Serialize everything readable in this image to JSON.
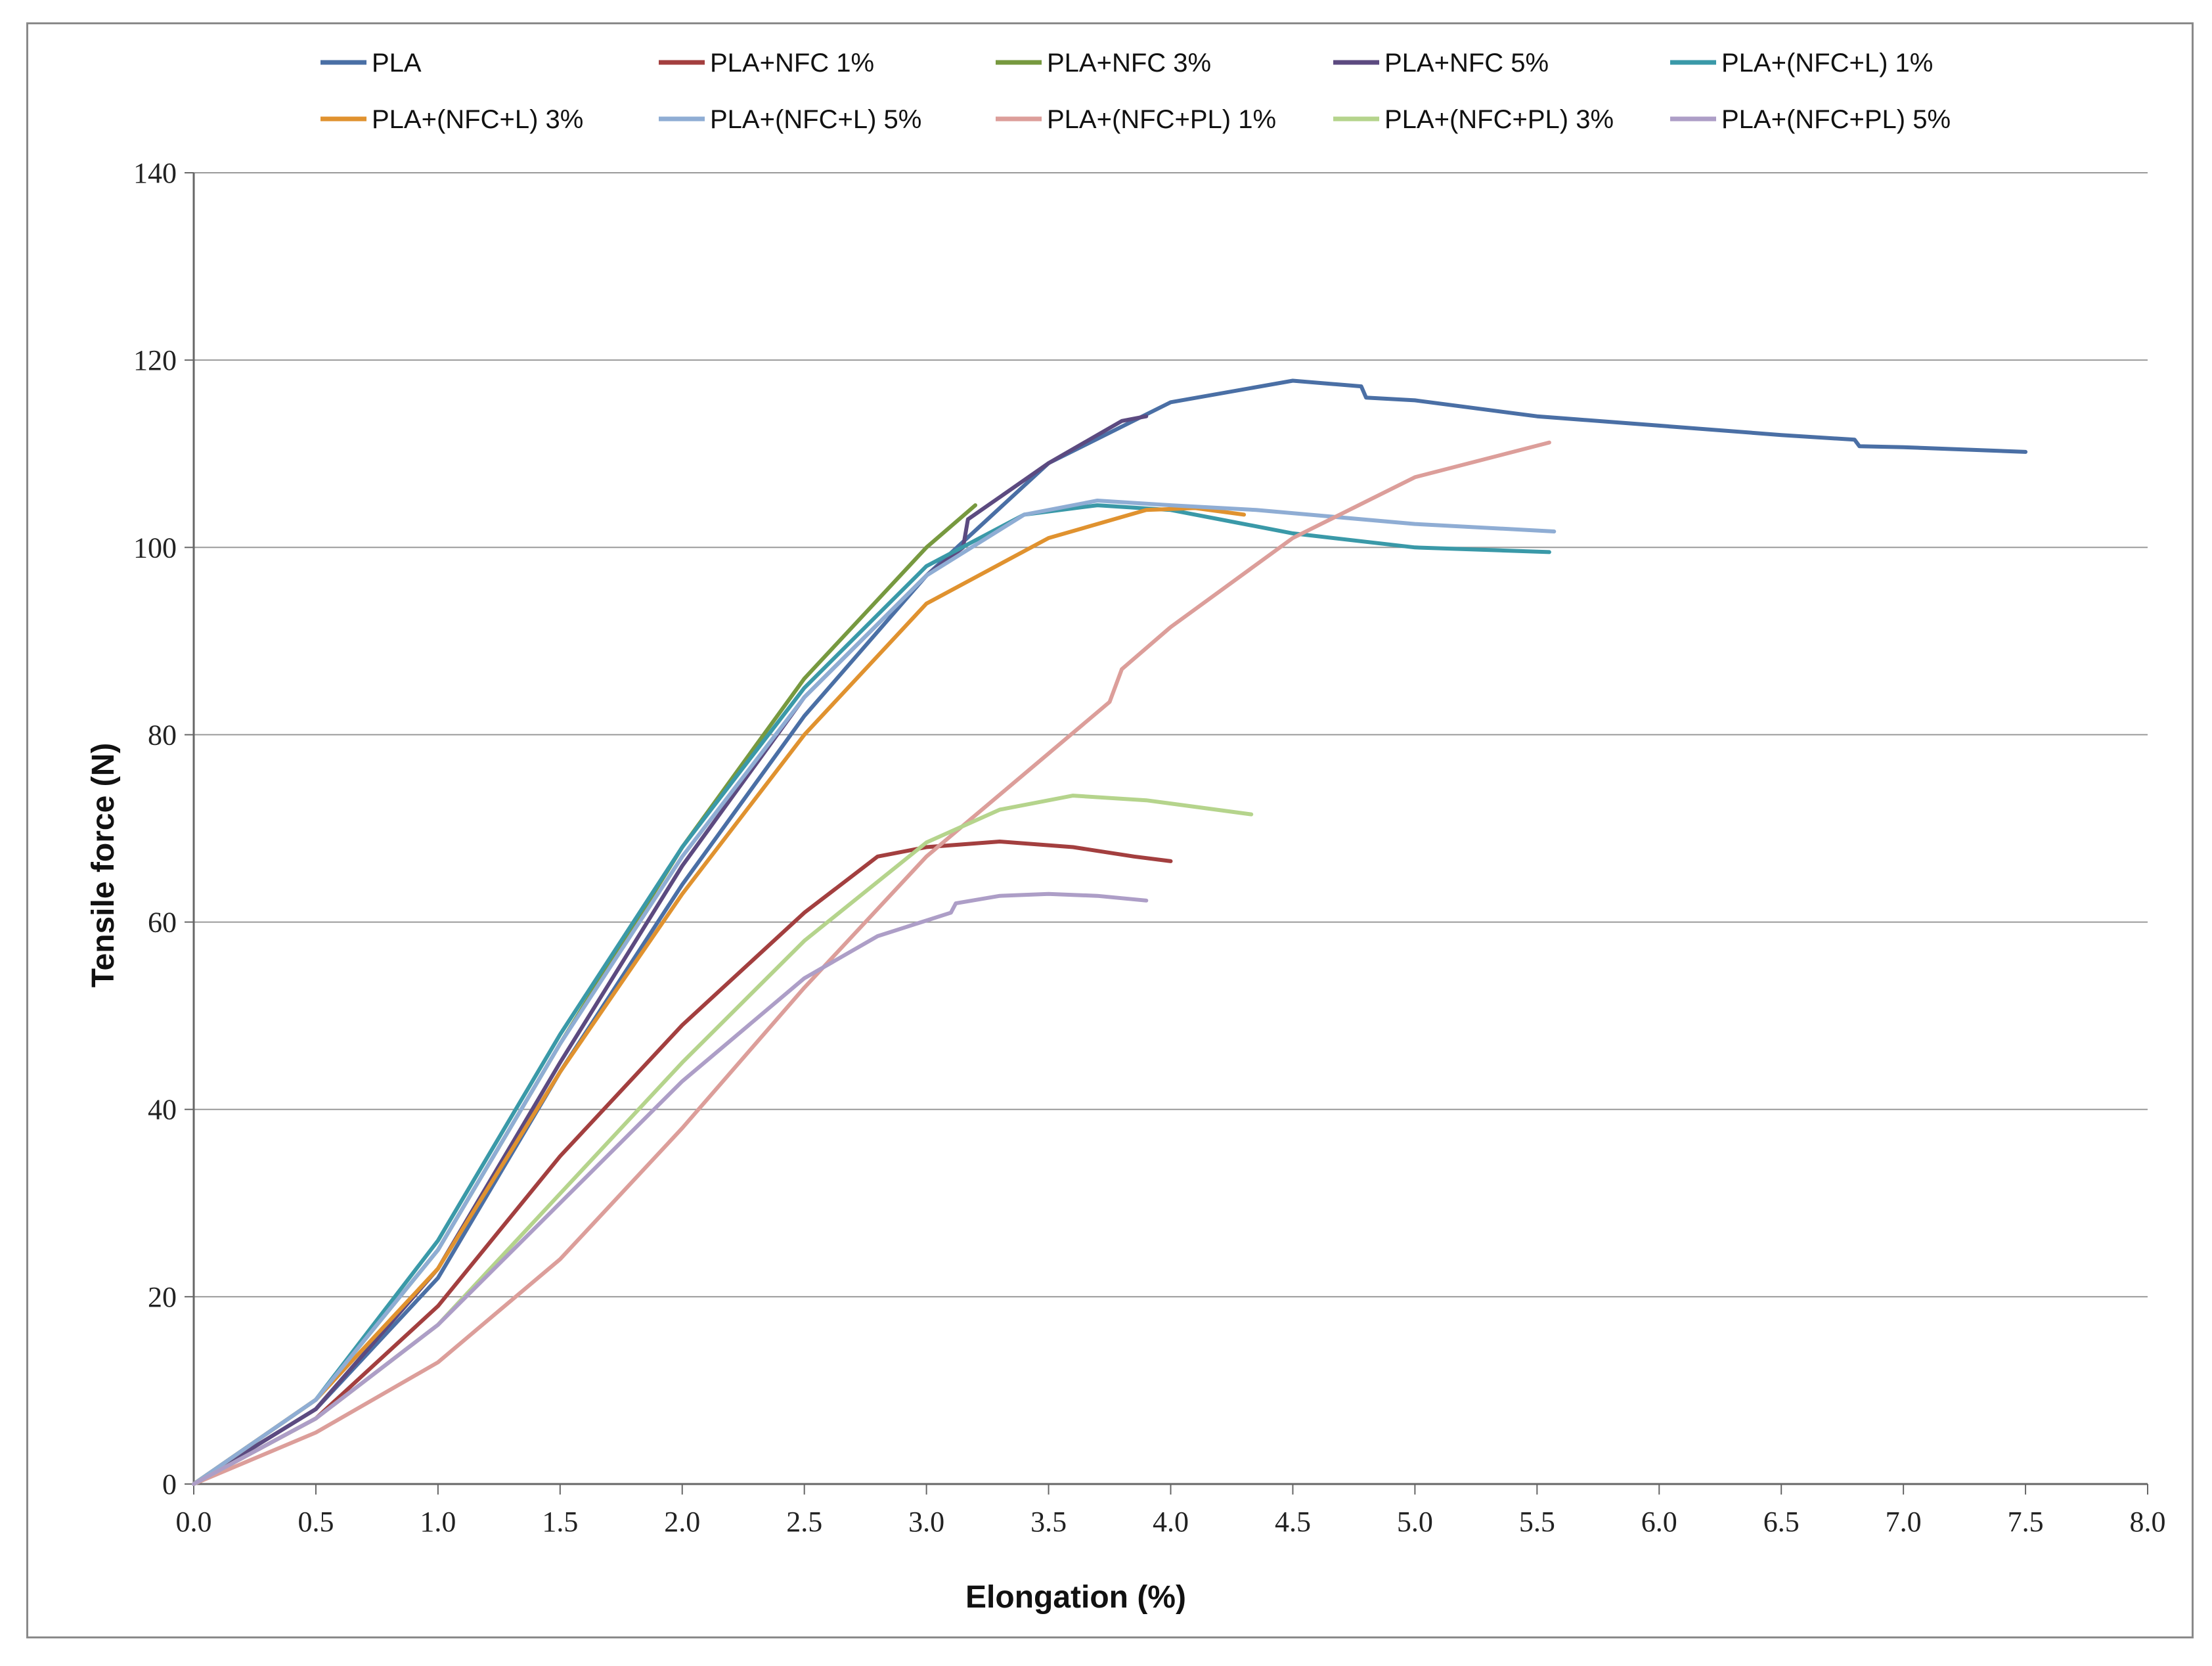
{
  "chart_data": {
    "type": "line",
    "title": "",
    "xlabel": "Elongation (%)",
    "ylabel": "Tensile force (N)",
    "xlim": [
      0,
      8
    ],
    "ylim": [
      0,
      140
    ],
    "xticks": [
      "0.0",
      "0.5",
      "1.0",
      "1.5",
      "2.0",
      "2.5",
      "3.0",
      "3.5",
      "4.0",
      "4.5",
      "5.0",
      "5.5",
      "6.0",
      "6.5",
      "7.0",
      "7.5",
      "8.0"
    ],
    "yticks": [
      "0",
      "20",
      "40",
      "60",
      "80",
      "100",
      "120",
      "140"
    ],
    "grid": "horizontal",
    "legend_position": "top",
    "series": [
      {
        "name": "PLA",
        "color": "#4a6fa5",
        "points": [
          [
            0,
            0
          ],
          [
            0.5,
            8
          ],
          [
            1.0,
            22
          ],
          [
            1.5,
            44
          ],
          [
            2.0,
            64
          ],
          [
            2.5,
            82
          ],
          [
            3.0,
            97
          ],
          [
            3.5,
            109
          ],
          [
            4.0,
            115.5
          ],
          [
            4.5,
            117.8
          ],
          [
            4.78,
            117.2
          ],
          [
            4.8,
            116
          ],
          [
            5.0,
            115.7
          ],
          [
            5.5,
            114
          ],
          [
            6.0,
            113
          ],
          [
            6.5,
            112
          ],
          [
            6.8,
            111.5
          ],
          [
            6.82,
            110.8
          ],
          [
            7.0,
            110.7
          ],
          [
            7.5,
            110.2
          ]
        ]
      },
      {
        "name": "PLA+NFC 1%",
        "color": "#a33f3f",
        "points": [
          [
            0,
            0
          ],
          [
            0.5,
            7
          ],
          [
            1.0,
            19
          ],
          [
            1.5,
            35
          ],
          [
            2.0,
            49
          ],
          [
            2.5,
            61
          ],
          [
            2.8,
            67
          ],
          [
            3.0,
            68
          ],
          [
            3.3,
            68.6
          ],
          [
            3.6,
            68
          ],
          [
            3.85,
            67
          ],
          [
            4.0,
            66.5
          ]
        ]
      },
      {
        "name": "PLA+NFC 3%",
        "color": "#77993f",
        "points": [
          [
            0,
            0
          ],
          [
            0.5,
            9
          ],
          [
            1.0,
            25
          ],
          [
            1.5,
            47
          ],
          [
            2.0,
            68
          ],
          [
            2.5,
            86
          ],
          [
            3.0,
            100
          ],
          [
            3.2,
            104.5
          ]
        ]
      },
      {
        "name": "PLA+NFC 5%",
        "color": "#5c4a80",
        "points": [
          [
            0,
            0
          ],
          [
            0.5,
            8
          ],
          [
            1.0,
            23
          ],
          [
            1.5,
            45
          ],
          [
            2.0,
            66
          ],
          [
            2.5,
            84
          ],
          [
            3.0,
            97
          ],
          [
            3.15,
            100
          ],
          [
            3.17,
            103
          ],
          [
            3.5,
            109
          ],
          [
            3.7,
            112
          ],
          [
            3.8,
            113.5
          ],
          [
            3.9,
            114
          ]
        ]
      },
      {
        "name": "PLA+(NFC+L) 1%",
        "color": "#3a99a8",
        "points": [
          [
            0,
            0
          ],
          [
            0.5,
            9
          ],
          [
            1.0,
            26
          ],
          [
            1.5,
            48
          ],
          [
            2.0,
            68
          ],
          [
            2.5,
            85
          ],
          [
            3.0,
            98
          ],
          [
            3.4,
            103.5
          ],
          [
            3.7,
            104.5
          ],
          [
            4.0,
            104
          ],
          [
            4.2,
            103
          ],
          [
            4.5,
            101.5
          ],
          [
            5.0,
            100
          ],
          [
            5.55,
            99.5
          ]
        ]
      },
      {
        "name": "PLA+(NFC+L) 3%",
        "color": "#e0922f",
        "points": [
          [
            0,
            0
          ],
          [
            0.5,
            9
          ],
          [
            1.0,
            23
          ],
          [
            1.5,
            44
          ],
          [
            2.0,
            63
          ],
          [
            2.5,
            80
          ],
          [
            3.0,
            94
          ],
          [
            3.5,
            101
          ],
          [
            3.9,
            104
          ],
          [
            4.1,
            104.2
          ],
          [
            4.3,
            103.5
          ]
        ]
      },
      {
        "name": "PLA+(NFC+L) 5%",
        "color": "#8fadd4",
        "points": [
          [
            0,
            0
          ],
          [
            0.5,
            9
          ],
          [
            1.0,
            25
          ],
          [
            1.5,
            47
          ],
          [
            2.0,
            67
          ],
          [
            2.5,
            84
          ],
          [
            3.0,
            97
          ],
          [
            3.4,
            103.5
          ],
          [
            3.7,
            105
          ],
          [
            4.0,
            104.5
          ],
          [
            4.35,
            104
          ],
          [
            5.0,
            102.5
          ],
          [
            5.57,
            101.7
          ]
        ]
      },
      {
        "name": "PLA+(NFC+PL) 1%",
        "color": "#dc9e9a",
        "points": [
          [
            0,
            0
          ],
          [
            0.5,
            5.5
          ],
          [
            1.0,
            13
          ],
          [
            1.5,
            24
          ],
          [
            2.0,
            38
          ],
          [
            2.5,
            53
          ],
          [
            3.0,
            67
          ],
          [
            3.5,
            78
          ],
          [
            3.75,
            83.5
          ],
          [
            3.8,
            87
          ],
          [
            4.0,
            91.5
          ],
          [
            4.5,
            101
          ],
          [
            5.0,
            107.5
          ],
          [
            5.55,
            111.2
          ]
        ]
      },
      {
        "name": "PLA+(NFC+PL) 3%",
        "color": "#b5d48c",
        "points": [
          [
            0,
            0
          ],
          [
            0.5,
            7
          ],
          [
            1.0,
            17
          ],
          [
            1.5,
            31
          ],
          [
            2.0,
            45
          ],
          [
            2.5,
            58
          ],
          [
            3.0,
            68.5
          ],
          [
            3.3,
            72
          ],
          [
            3.6,
            73.5
          ],
          [
            3.9,
            73
          ],
          [
            4.33,
            71.5
          ]
        ]
      },
      {
        "name": "PLA+(NFC+PL) 5%",
        "color": "#ad9ec7",
        "points": [
          [
            0,
            0
          ],
          [
            0.5,
            7
          ],
          [
            1.0,
            17
          ],
          [
            1.5,
            30
          ],
          [
            2.0,
            43
          ],
          [
            2.5,
            54
          ],
          [
            2.8,
            58.5
          ],
          [
            3.1,
            61
          ],
          [
            3.12,
            62
          ],
          [
            3.3,
            62.8
          ],
          [
            3.5,
            63
          ],
          [
            3.7,
            62.8
          ],
          [
            3.9,
            62.3
          ]
        ]
      }
    ]
  }
}
